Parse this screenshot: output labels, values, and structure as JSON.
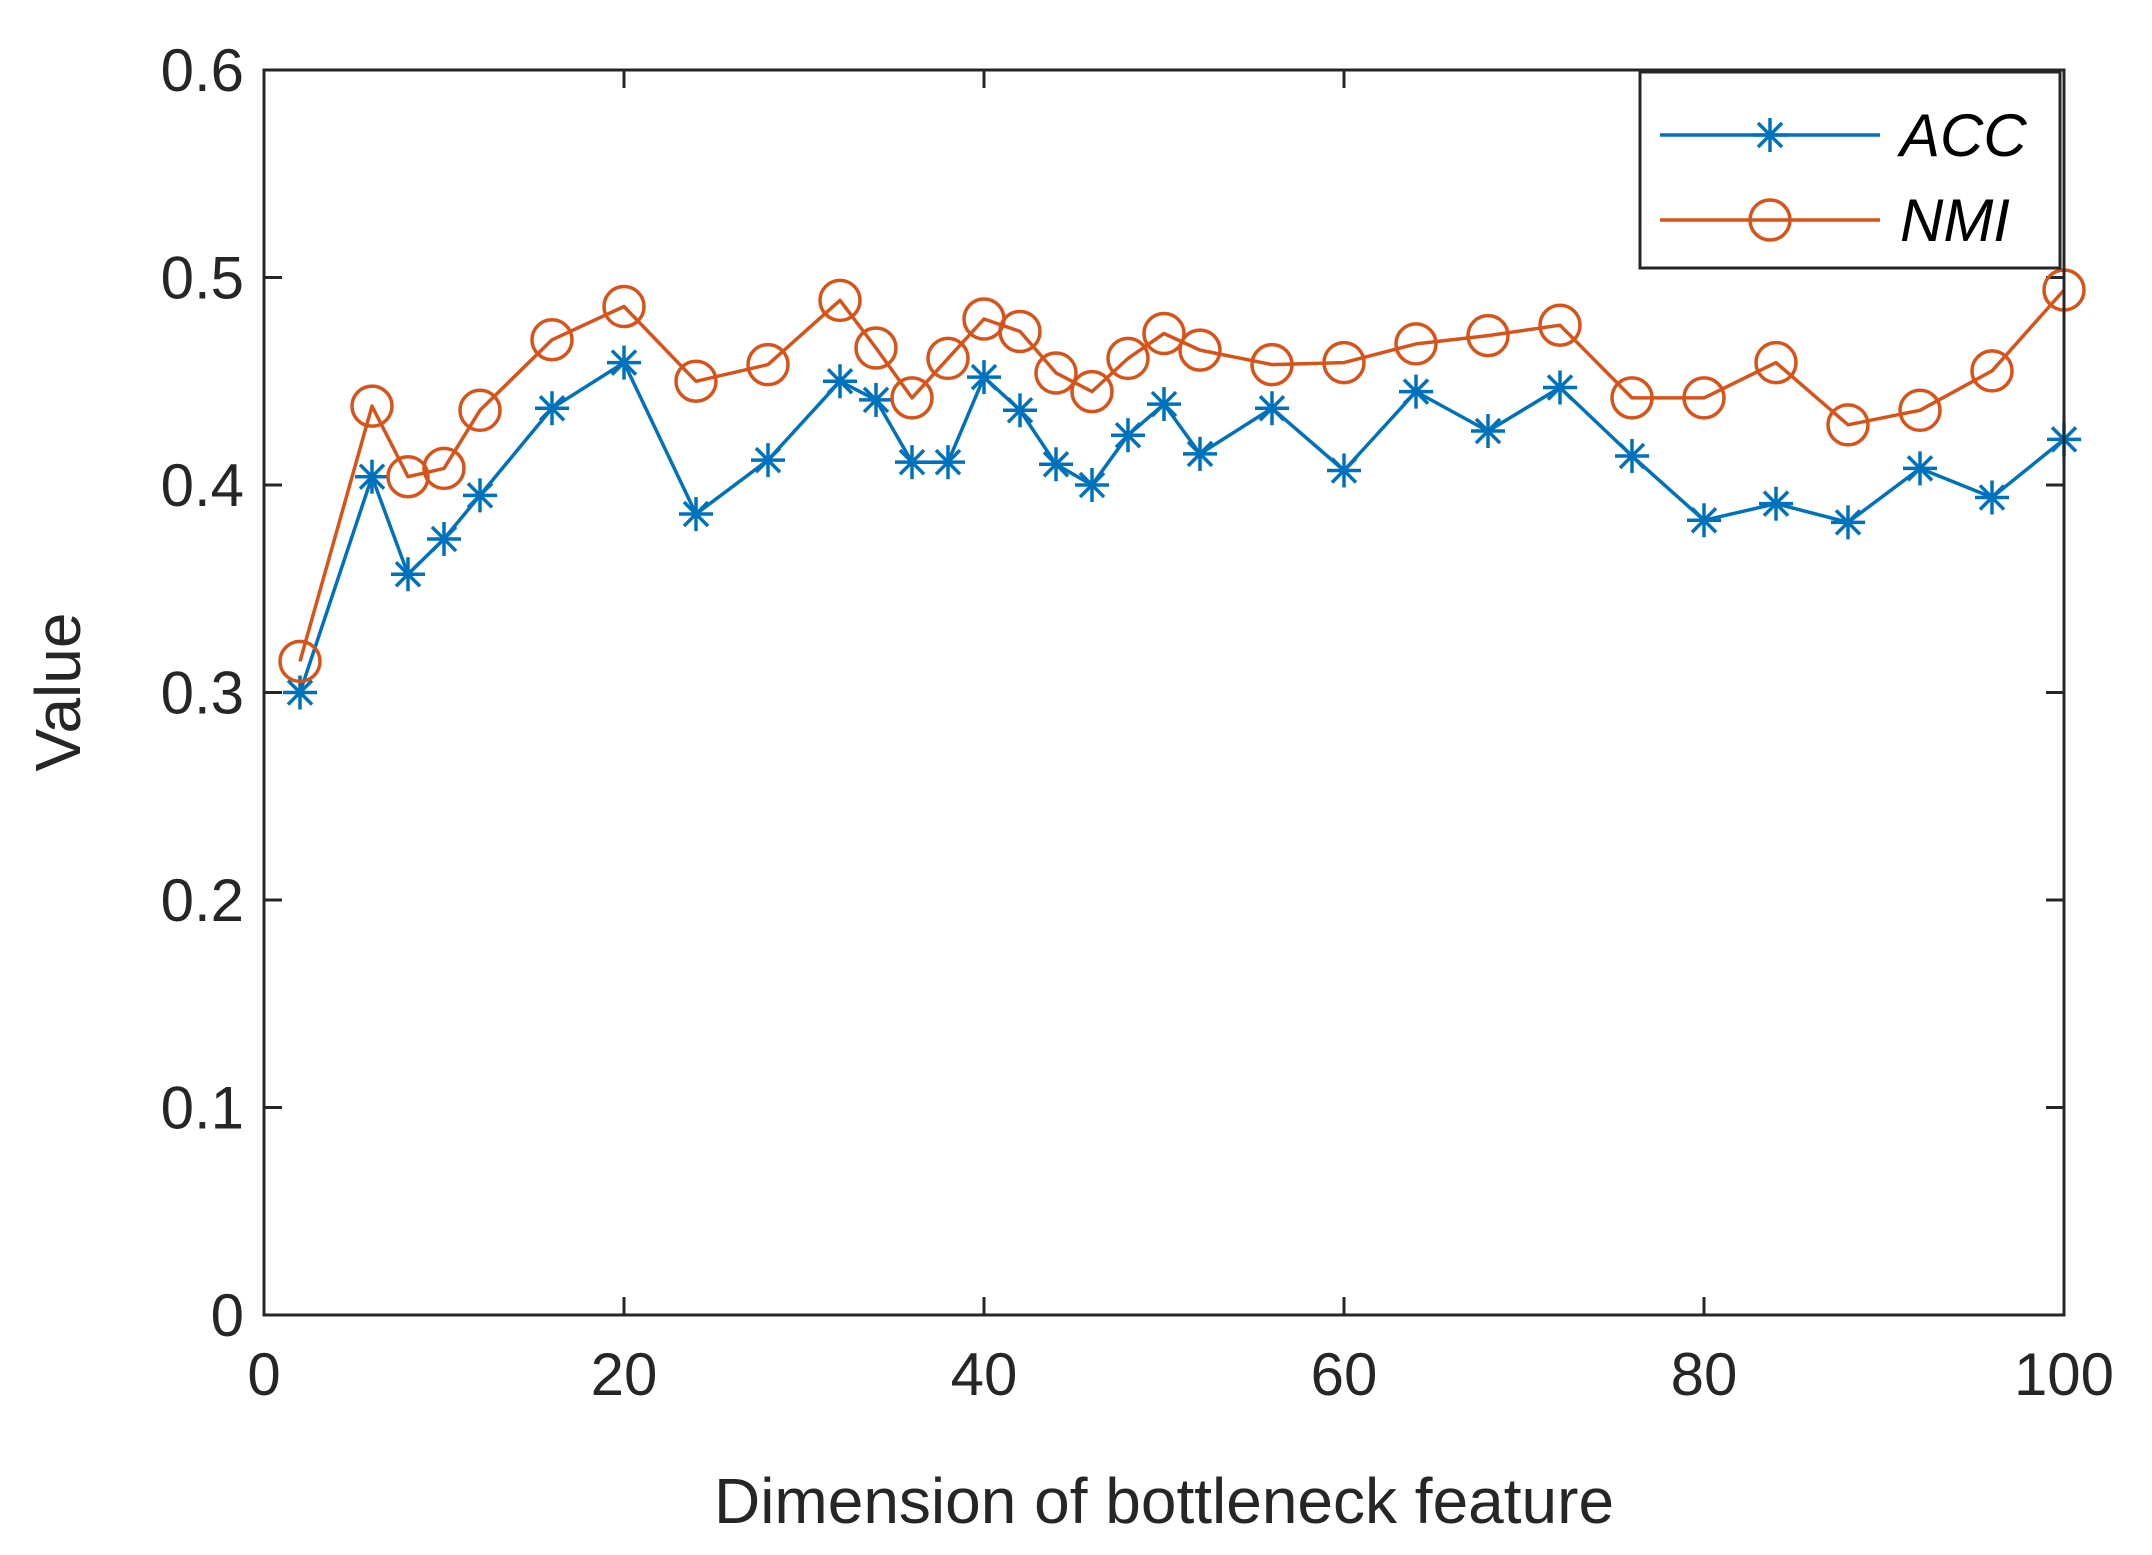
{
  "chart_data": {
    "type": "line",
    "xlabel": "Dimension of bottleneck feature",
    "ylabel": "Value",
    "xlim": [
      0,
      100
    ],
    "ylim": [
      0,
      0.6
    ],
    "xticks": [
      "0",
      "20",
      "40",
      "60",
      "80",
      "100"
    ],
    "yticks": [
      "0",
      "0.1",
      "0.2",
      "0.3",
      "0.4",
      "0.5",
      "0.6"
    ],
    "grid": false,
    "legend_position": "top-right",
    "series": [
      {
        "name": "ACC",
        "color": "#0072BD",
        "marker": "asterisk",
        "x": [
          2,
          6,
          8,
          10,
          12,
          16,
          20,
          24,
          28,
          32,
          34,
          36,
          38,
          40,
          42,
          44,
          46,
          48,
          50,
          52,
          56,
          60,
          64,
          68,
          72,
          76,
          80,
          84,
          88,
          92,
          96,
          100
        ],
        "y": [
          0.3,
          0.404,
          0.357,
          0.374,
          0.395,
          0.437,
          0.459,
          0.386,
          0.412,
          0.45,
          0.441,
          0.411,
          0.411,
          0.452,
          0.436,
          0.41,
          0.4,
          0.424,
          0.439,
          0.415,
          0.437,
          0.407,
          0.445,
          0.426,
          0.447,
          0.414,
          0.383,
          0.391,
          0.382,
          0.408,
          0.394,
          0.422
        ]
      },
      {
        "name": "NMI",
        "color": "#D95319",
        "marker": "circle",
        "x": [
          2,
          6,
          8,
          10,
          12,
          16,
          20,
          24,
          28,
          32,
          34,
          36,
          38,
          40,
          42,
          44,
          46,
          48,
          50,
          52,
          56,
          60,
          64,
          68,
          72,
          76,
          80,
          84,
          88,
          92,
          96,
          100
        ],
        "y": [
          0.315,
          0.438,
          0.404,
          0.408,
          0.436,
          0.47,
          0.486,
          0.45,
          0.458,
          0.489,
          0.466,
          0.442,
          0.461,
          0.48,
          0.474,
          0.454,
          0.445,
          0.461,
          0.473,
          0.465,
          0.458,
          0.459,
          0.468,
          0.472,
          0.477,
          0.442,
          0.442,
          0.459,
          0.429,
          0.436,
          0.455,
          0.494
        ]
      }
    ]
  }
}
